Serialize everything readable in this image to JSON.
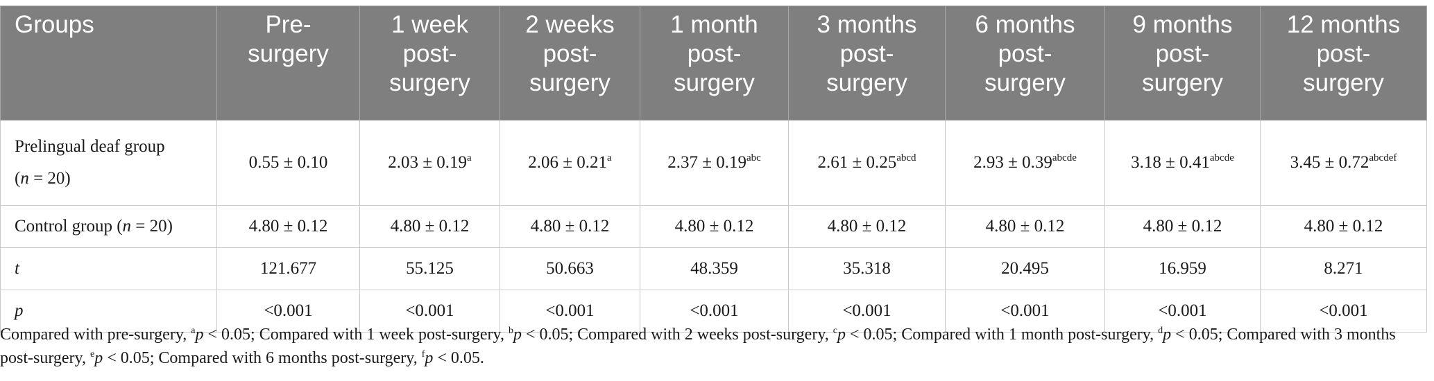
{
  "table": {
    "headers": [
      {
        "line1": "Groups",
        "line2": "",
        "line3": ""
      },
      {
        "line1": "Pre-",
        "line2": "surgery",
        "line3": ""
      },
      {
        "line1": "1 week",
        "line2": "post-",
        "line3": "surgery"
      },
      {
        "line1": "2 weeks",
        "line2": "post-",
        "line3": "surgery"
      },
      {
        "line1": "1 month",
        "line2": "post-",
        "line3": "surgery"
      },
      {
        "line1": "3 months",
        "line2": "post-",
        "line3": "surgery"
      },
      {
        "line1": "6 months",
        "line2": "post-",
        "line3": "surgery"
      },
      {
        "line1": "9 months",
        "line2": "post-",
        "line3": "surgery"
      },
      {
        "line1": "12 months",
        "line2": "post-",
        "line3": "surgery"
      }
    ],
    "rows": [
      {
        "label_line1": "Prelingual deaf group",
        "label_line2_prefix": "(",
        "label_line2_italic": "n",
        "label_line2_suffix": " = 20)",
        "cells": [
          {
            "value": "0.55 ± 0.10",
            "sup": ""
          },
          {
            "value": "2.03 ± 0.19",
            "sup": "a"
          },
          {
            "value": "2.06 ± 0.21",
            "sup": "a"
          },
          {
            "value": "2.37 ± 0.19",
            "sup": "abc"
          },
          {
            "value": "2.61 ± 0.25",
            "sup": "abcd"
          },
          {
            "value": "2.93 ± 0.39",
            "sup": "abcde"
          },
          {
            "value": "3.18 ± 0.41",
            "sup": "abcde"
          },
          {
            "value": "3.45 ± 0.72",
            "sup": "abcdef"
          }
        ]
      },
      {
        "label_prefix": "Control group (",
        "label_italic": "n",
        "label_suffix": " = 20)",
        "cells": [
          "4.80 ± 0.12",
          "4.80 ± 0.12",
          "4.80 ± 0.12",
          "4.80 ± 0.12",
          "4.80 ± 0.12",
          "4.80 ± 0.12",
          "4.80 ± 0.12",
          "4.80 ± 0.12"
        ]
      },
      {
        "label": "t",
        "cells": [
          "121.677",
          "55.125",
          "50.663",
          "48.359",
          "35.318",
          "20.495",
          "16.959",
          "8.271"
        ]
      },
      {
        "label": "p",
        "cells": [
          "<0.001",
          "<0.001",
          "<0.001",
          "<0.001",
          "<0.001",
          "<0.001",
          "<0.001",
          "<0.001"
        ]
      }
    ]
  },
  "footnote": [
    {
      "text": "Compared with pre-surgery, ",
      "sup": "a",
      "italic": "p",
      "tail": " < 0.05; "
    },
    {
      "text": "Compared with 1 week post-surgery, ",
      "sup": "b",
      "italic": "p",
      "tail": " < 0.05; "
    },
    {
      "text": "Compared with 2 weeks post-surgery, ",
      "sup": "c",
      "italic": "p",
      "tail": " < 0.05; "
    },
    {
      "text": "Compared with 1 month post-surgery, ",
      "sup": "d",
      "italic": "p",
      "tail": " < 0.05; "
    },
    {
      "text": "Compared with 3 months post-surgery, ",
      "sup": "e",
      "italic": "p",
      "tail": " < 0.05; "
    },
    {
      "text": "Compared with 6 months post-surgery, ",
      "sup": "f",
      "italic": "p",
      "tail": " < 0.05."
    }
  ],
  "colors": {
    "header_bg": "#7f7f7f",
    "header_text": "#ffffff",
    "grid": "#c9c9c9"
  }
}
